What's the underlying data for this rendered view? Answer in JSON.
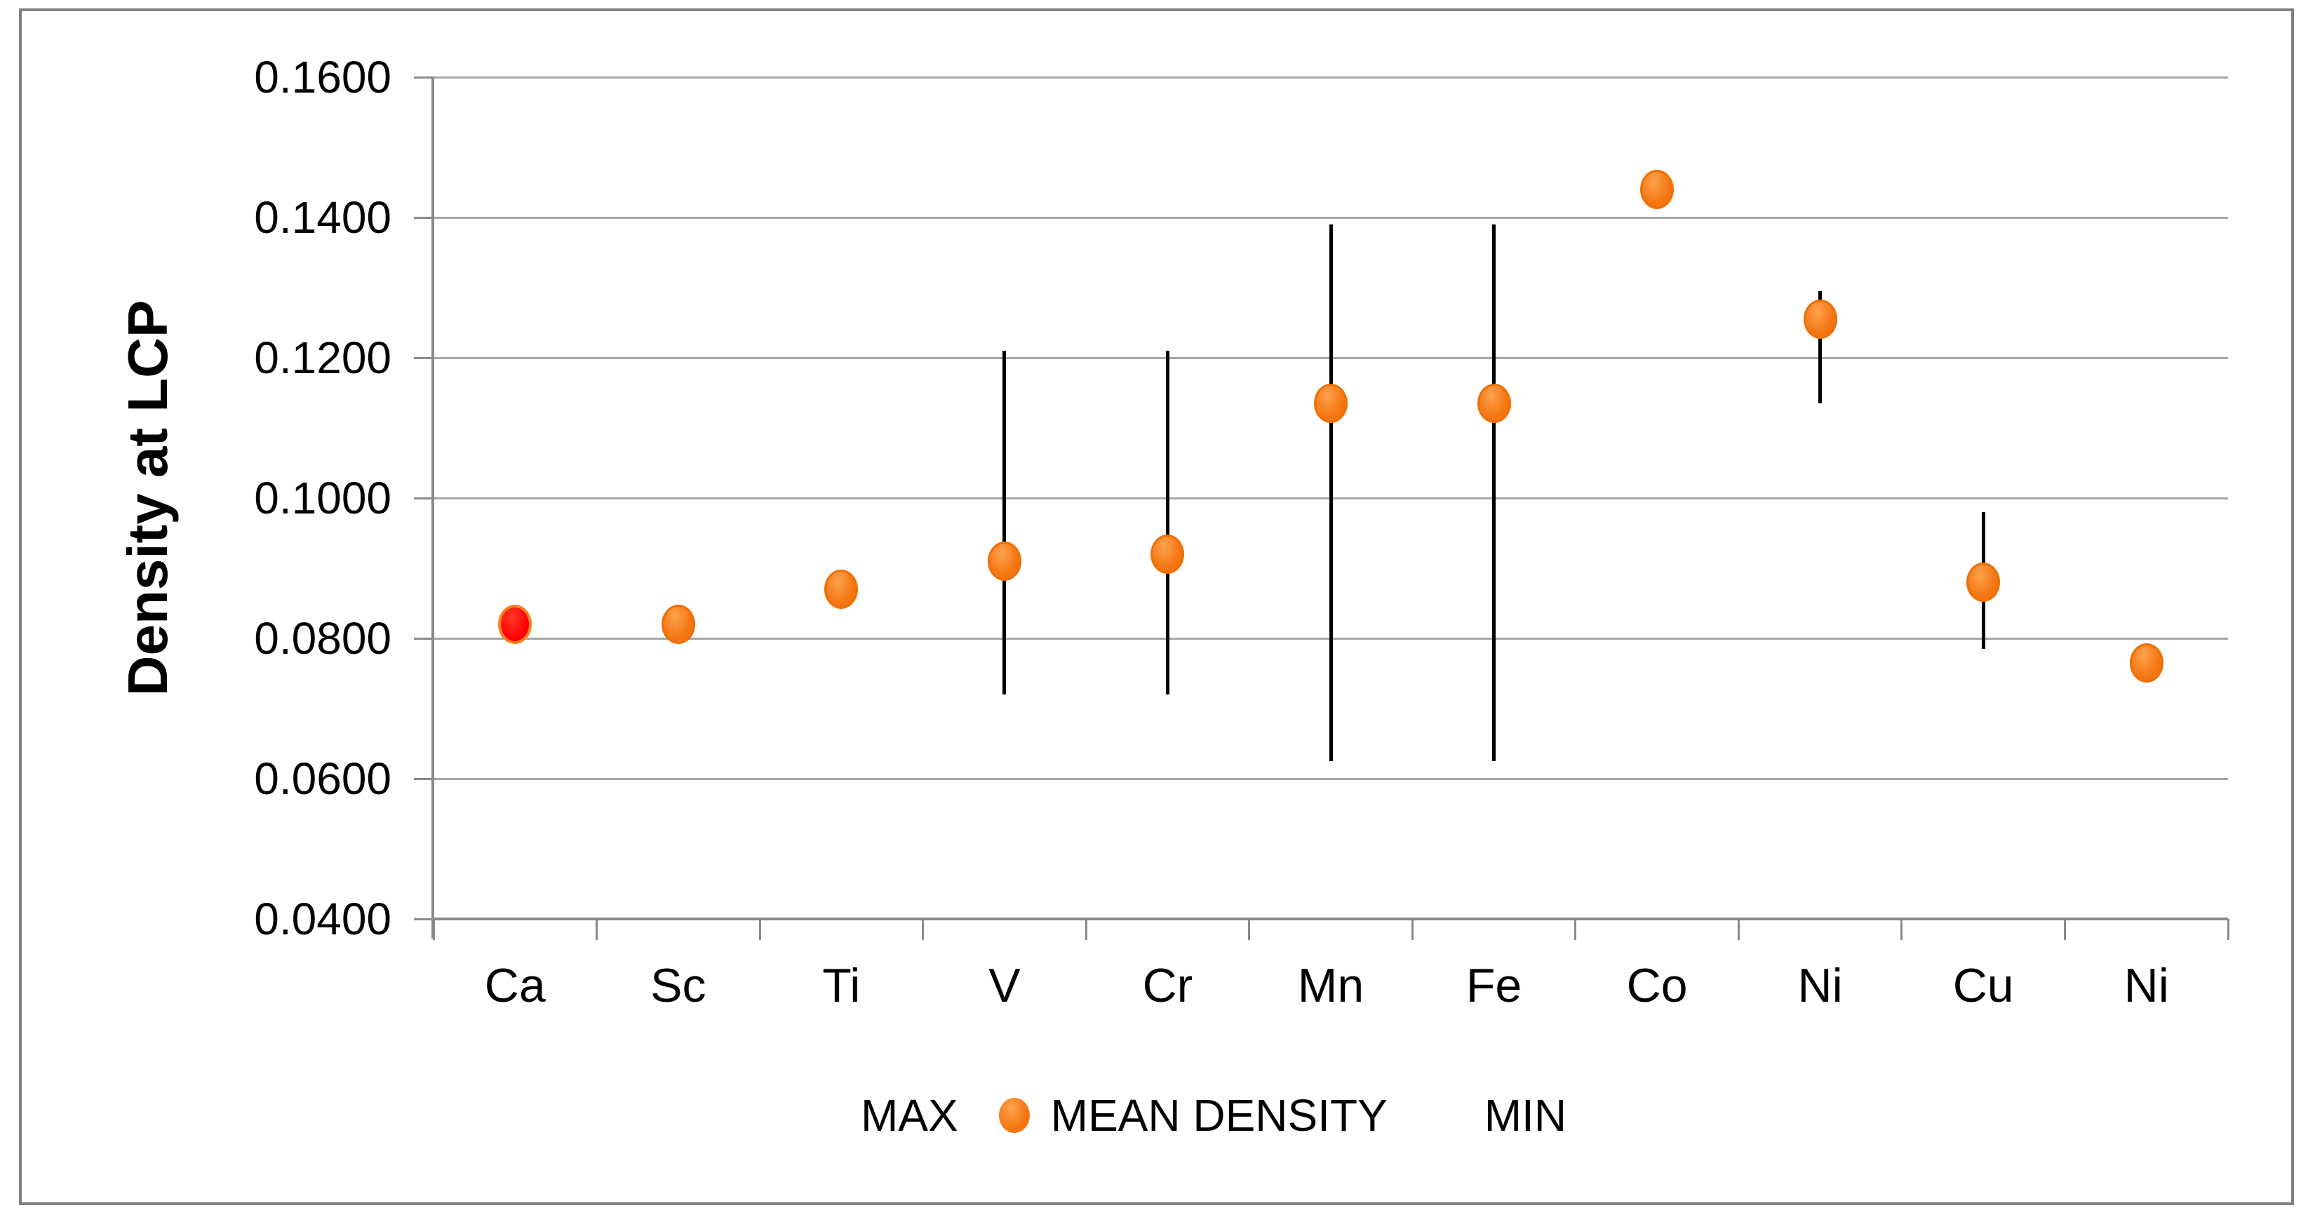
{
  "figure": {
    "y_axis_title": "Density at LCP",
    "legend": {
      "max_label": "MAX",
      "mean_label": "MEAN DENSITY",
      "min_label": "MIN"
    }
  },
  "colors": {
    "marker_fill": "#F57713",
    "marker_fill_light": "#FCA24E",
    "marker_border": "#ED6F06",
    "first_marker_fill": "#FE0000",
    "first_marker_border": "#F5821F",
    "error_bar": "#000000",
    "gridline": "#A6A6A6",
    "axis_line": "#8A8A8A",
    "figure_border": "#808080",
    "text": "#000000",
    "background": "#FFFFFF"
  },
  "chart_data": {
    "type": "scatter",
    "title": "",
    "xlabel": "",
    "ylabel": "Density at LCP",
    "categories": [
      "Ca",
      "Sc",
      "Ti",
      "V",
      "Cr",
      "Mn",
      "Fe",
      "Co",
      "Ni",
      "Cu",
      "Ni"
    ],
    "series": [
      {
        "name": "MEAN DENSITY",
        "values": [
          0.082,
          0.082,
          0.087,
          0.091,
          0.092,
          0.1135,
          0.1135,
          0.144,
          0.1255,
          0.088,
          0.0765
        ]
      },
      {
        "name": "MAX",
        "values": [
          null,
          null,
          null,
          0.121,
          0.121,
          0.139,
          0.139,
          null,
          0.1295,
          0.098,
          null
        ]
      },
      {
        "name": "MIN",
        "values": [
          null,
          null,
          null,
          0.072,
          0.072,
          0.0625,
          0.0625,
          null,
          0.1135,
          0.0785,
          null
        ]
      }
    ],
    "ylim": [
      0.04,
      0.16
    ],
    "ytick_step": 0.02,
    "yticks": [
      0.16,
      0.14,
      0.12,
      0.1,
      0.08,
      0.06,
      0.04
    ],
    "ytick_labels": [
      "0.1600",
      "0.1400",
      "0.1200",
      "0.1000",
      "0.0800",
      "0.0600",
      "0.0400"
    ],
    "grid": "horizontal",
    "legend_position": "bottom",
    "legend_entries": [
      "MAX",
      "MEAN DENSITY",
      "MIN"
    ],
    "notes": "error bars span MIN to MAX; first point (Ca) drawn red with orange outline; all other mean points orange"
  }
}
